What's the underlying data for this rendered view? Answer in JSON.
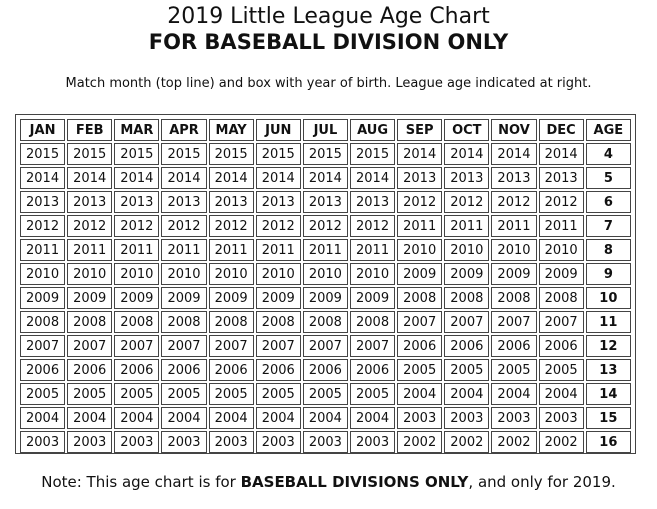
{
  "title": "2019 Little League Age Chart",
  "subtitle": "FOR BASEBALL DIVISION ONLY",
  "instruction": "Match month (top line) and box with year of birth. League age indicated at right.",
  "headers": [
    "JAN",
    "FEB",
    "MAR",
    "APR",
    "MAY",
    "JUN",
    "JUL",
    "AUG",
    "SEP",
    "OCT",
    "NOV",
    "DEC",
    "AGE"
  ],
  "rows": [
    {
      "years": [
        "2015",
        "2015",
        "2015",
        "2015",
        "2015",
        "2015",
        "2015",
        "2015",
        "2014",
        "2014",
        "2014",
        "2014"
      ],
      "age": "4"
    },
    {
      "years": [
        "2014",
        "2014",
        "2014",
        "2014",
        "2014",
        "2014",
        "2014",
        "2014",
        "2013",
        "2013",
        "2013",
        "2013"
      ],
      "age": "5"
    },
    {
      "years": [
        "2013",
        "2013",
        "2013",
        "2013",
        "2013",
        "2013",
        "2013",
        "2013",
        "2012",
        "2012",
        "2012",
        "2012"
      ],
      "age": "6"
    },
    {
      "years": [
        "2012",
        "2012",
        "2012",
        "2012",
        "2012",
        "2012",
        "2012",
        "2012",
        "2011",
        "2011",
        "2011",
        "2011"
      ],
      "age": "7"
    },
    {
      "years": [
        "2011",
        "2011",
        "2011",
        "2011",
        "2011",
        "2011",
        "2011",
        "2011",
        "2010",
        "2010",
        "2010",
        "2010"
      ],
      "age": "8"
    },
    {
      "years": [
        "2010",
        "2010",
        "2010",
        "2010",
        "2010",
        "2010",
        "2010",
        "2010",
        "2009",
        "2009",
        "2009",
        "2009"
      ],
      "age": "9"
    },
    {
      "years": [
        "2009",
        "2009",
        "2009",
        "2009",
        "2009",
        "2009",
        "2009",
        "2009",
        "2008",
        "2008",
        "2008",
        "2008"
      ],
      "age": "10"
    },
    {
      "years": [
        "2008",
        "2008",
        "2008",
        "2008",
        "2008",
        "2008",
        "2008",
        "2008",
        "2007",
        "2007",
        "2007",
        "2007"
      ],
      "age": "11"
    },
    {
      "years": [
        "2007",
        "2007",
        "2007",
        "2007",
        "2007",
        "2007",
        "2007",
        "2007",
        "2006",
        "2006",
        "2006",
        "2006"
      ],
      "age": "12"
    },
    {
      "years": [
        "2006",
        "2006",
        "2006",
        "2006",
        "2006",
        "2006",
        "2006",
        "2006",
        "2005",
        "2005",
        "2005",
        "2005"
      ],
      "age": "13"
    },
    {
      "years": [
        "2005",
        "2005",
        "2005",
        "2005",
        "2005",
        "2005",
        "2005",
        "2005",
        "2004",
        "2004",
        "2004",
        "2004"
      ],
      "age": "14"
    },
    {
      "years": [
        "2004",
        "2004",
        "2004",
        "2004",
        "2004",
        "2004",
        "2004",
        "2004",
        "2003",
        "2003",
        "2003",
        "2003"
      ],
      "age": "15"
    },
    {
      "years": [
        "2003",
        "2003",
        "2003",
        "2003",
        "2003",
        "2003",
        "2003",
        "2003",
        "2002",
        "2002",
        "2002",
        "2002"
      ],
      "age": "16"
    }
  ],
  "note": {
    "prefix": "Note: This age chart is for ",
    "emphasis": "BASEBALL DIVISIONS ONLY",
    "suffix": ", and only for 2019."
  }
}
